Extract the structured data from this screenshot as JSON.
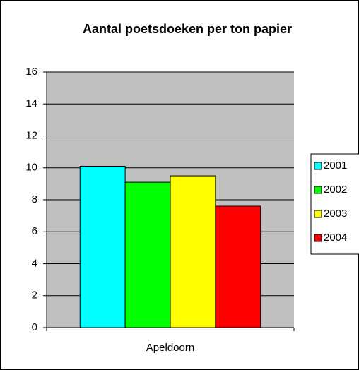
{
  "chart_data": {
    "type": "bar",
    "title": "Aantal poetsdoeken per ton papier",
    "categories": [
      "Apeldoorn"
    ],
    "series": [
      {
        "name": "2001",
        "color": "#00FFFF",
        "values": [
          10.1
        ]
      },
      {
        "name": "2002",
        "color": "#00FF00",
        "values": [
          9.1
        ]
      },
      {
        "name": "2003",
        "color": "#FFFF00",
        "values": [
          9.5
        ]
      },
      {
        "name": "2004",
        "color": "#FF0000",
        "values": [
          7.6
        ]
      }
    ],
    "ylim": [
      0,
      16
    ],
    "yticks": [
      0,
      2,
      4,
      6,
      8,
      10,
      12,
      14,
      16
    ],
    "grid": true,
    "legend": "right"
  }
}
